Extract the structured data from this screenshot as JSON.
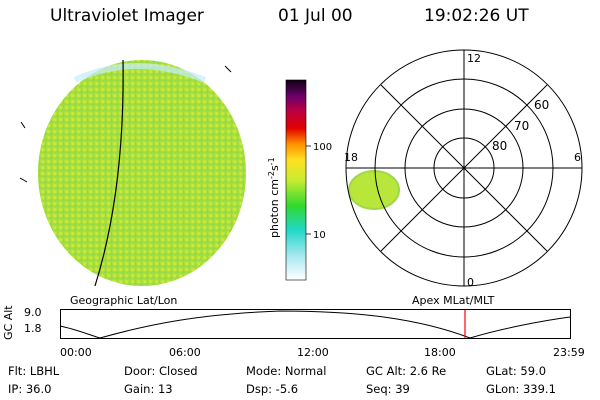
{
  "header": {
    "instrument": "Ultraviolet Imager",
    "date": "01 Jul 00",
    "time": "19:02:26 UT"
  },
  "panels": {
    "left_label": "Geographic Lat/Lon",
    "right_label": "Apex MLat/MLT"
  },
  "colorbar": {
    "label": "photon cm",
    "label_exp1": "-2",
    "label_s": "s",
    "label_exp2": "-1",
    "ticks": [
      "100",
      "10"
    ]
  },
  "polar": {
    "mlt_labels": [
      "12",
      "6",
      "18",
      "0"
    ],
    "lat_labels": [
      "60",
      "70",
      "80"
    ]
  },
  "orbit_plot": {
    "ylabel": "GC Alt",
    "y_ticks": [
      "9.0",
      "1.8"
    ],
    "x_ticks": [
      "00:00",
      "06:00",
      "12:00",
      "18:00",
      "23:59"
    ]
  },
  "info": {
    "row1": {
      "flt": "Flt: LBHL",
      "door": "Door: Closed",
      "mode": "Mode: Normal",
      "gc_alt": "GC Alt: 2.6 Re",
      "glat": "GLat:  59.0"
    },
    "row2": {
      "ip": "IP: 36.0",
      "gain": "Gain: 13",
      "dsp": "Dsp:    -5.6",
      "seq": "Seq: 39",
      "glon": "GLon: 339.1"
    }
  },
  "colors": {
    "disk_fill": "#b8e63a",
    "marker": "#ff0000"
  }
}
